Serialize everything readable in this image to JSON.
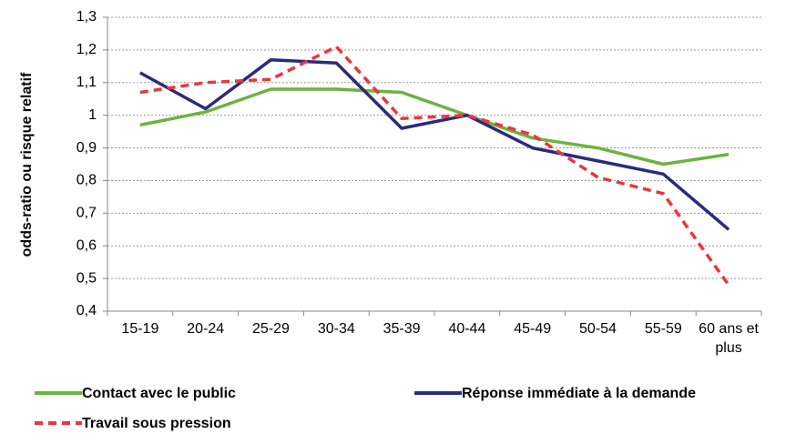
{
  "chart_data": {
    "type": "line",
    "y_label": "odds-ratio ou risque relatif",
    "categories": [
      "15-19",
      "20-24",
      "25-29",
      "30-34",
      "35-39",
      "40-44",
      "45-49",
      "50-54",
      "55-59",
      "60 ans et plus"
    ],
    "series": [
      {
        "name": "Contact avec le public",
        "color": "#6cb33f",
        "line_style": "solid",
        "values": [
          0.97,
          1.01,
          1.08,
          1.08,
          1.07,
          1.0,
          0.93,
          0.9,
          0.85,
          0.88
        ]
      },
      {
        "name": "Réponse immédiate à la demande",
        "color": "#2b2a7c",
        "line_style": "solid",
        "values": [
          1.13,
          1.02,
          1.17,
          1.16,
          0.96,
          1.0,
          0.9,
          0.86,
          0.82,
          0.65
        ]
      },
      {
        "name": "Travail sous pression",
        "color": "#e8383d",
        "line_style": "dashed",
        "values": [
          1.07,
          1.1,
          1.11,
          1.21,
          0.99,
          1.0,
          0.94,
          0.81,
          0.76,
          0.48
        ]
      }
    ],
    "ylim": [
      0.4,
      1.3
    ],
    "yticks": [
      {
        "value": 0.4,
        "label": "0,4"
      },
      {
        "value": 0.5,
        "label": "0,5"
      },
      {
        "value": 0.6,
        "label": "0,6"
      },
      {
        "value": 0.7,
        "label": "0,7"
      },
      {
        "value": 0.8,
        "label": "0,8"
      },
      {
        "value": 0.9,
        "label": "0,9"
      },
      1,
      {
        "value": 1.1,
        "label": "1,1"
      },
      {
        "value": 1.2,
        "label": "1,2"
      },
      {
        "value": 1.3,
        "label": "1,3"
      }
    ],
    "grid": true
  }
}
